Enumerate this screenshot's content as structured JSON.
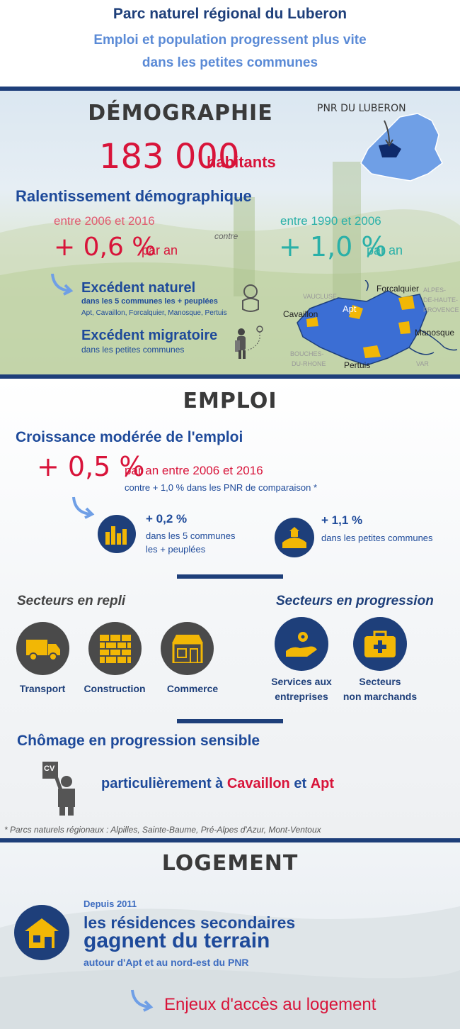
{
  "header": {
    "title": "Parc naturel régional du Luberon",
    "subtitle_line1": "Emploi et population progressent plus vite",
    "subtitle_line2": "dans les petites communes"
  },
  "demographie": {
    "heading": "DÉMOGRAPHIE",
    "map_label": "PNR DU LUBERON",
    "population": "183 000",
    "population_unit": "habitants",
    "slowdown_title": "Ralentissement démographique",
    "period_recent": "entre 2006 et 2016",
    "rate_recent": "+ 0,6 %",
    "rate_unit": "par an",
    "contre": "contre",
    "period_old": "entre 1990 et 2006",
    "rate_old": "+ 1,0 %",
    "excedent_naturel": "Excédent naturel",
    "excedent_naturel_sub": "dans les 5 communes les + peuplées",
    "excedent_naturel_towns": "Apt, Cavaillon, Forcalquier, Manosque, Pertuis",
    "excedent_migratoire": "Excédent migratoire",
    "excedent_migratoire_sub": "dans les petites communes",
    "map": {
      "vaucluse": "VAUCLUSE",
      "forcalquier": "Forcalquier",
      "alpes1": "ALPES-",
      "alpes2": "DE-HAUTE-",
      "alpes3": "PROVENCE",
      "apt": "Apt",
      "cavaillon": "Cavaillon",
      "manosque": "Manosque",
      "bouches1": "BOUCHES-",
      "bouches2": "DU-RHONE",
      "pertuis": "Pertuis",
      "var": "VAR"
    },
    "colors": {
      "map_fill": "#3b6ed4",
      "town_fill": "#f2b705"
    }
  },
  "emploi": {
    "heading": "EMPLOI",
    "growth_title": "Croissance modérée de l'emploi",
    "rate": "+ 0,5 %",
    "rate_detail": "par an entre 2006 et 2016",
    "comparison": "contre + 1,0 % dans les PNR de comparaison *",
    "big_towns_rate": "+ 0,2 %",
    "big_towns_l1": "dans les 5 communes",
    "big_towns_l2": "les + peuplées",
    "small_towns_rate": "+ 1,1 %",
    "small_towns_label": "dans les petites communes",
    "declining_title": "Secteurs en repli",
    "growing_title": "Secteurs en progression",
    "sector_transport": "Transport",
    "sector_construction": "Construction",
    "sector_commerce": "Commerce",
    "sector_services_l1": "Services aux",
    "sector_services_l2": "entreprises",
    "sector_nonmarch_l1": "Secteurs",
    "sector_nonmarch_l2": "non marchands",
    "chomage_title": "Chômage en progression sensible",
    "chomage_pre": "particulièrement à",
    "chomage_town1": "Cavaillon",
    "chomage_et": "et",
    "chomage_town2": "Apt",
    "cv": "CV",
    "footnote": "* Parcs naturels régionaux : Alpilles, Sainte-Baume, Pré-Alpes d'Azur, Mont-Ventoux"
  },
  "logement": {
    "heading": "LOGEMENT",
    "since": "Depuis 2011",
    "line1": "les résidences secondaires",
    "line2": "gagnent du terrain",
    "line3": "autour d'Apt et au nord-est du PNR",
    "enjeux": "Enjeux d'accès au logement"
  }
}
